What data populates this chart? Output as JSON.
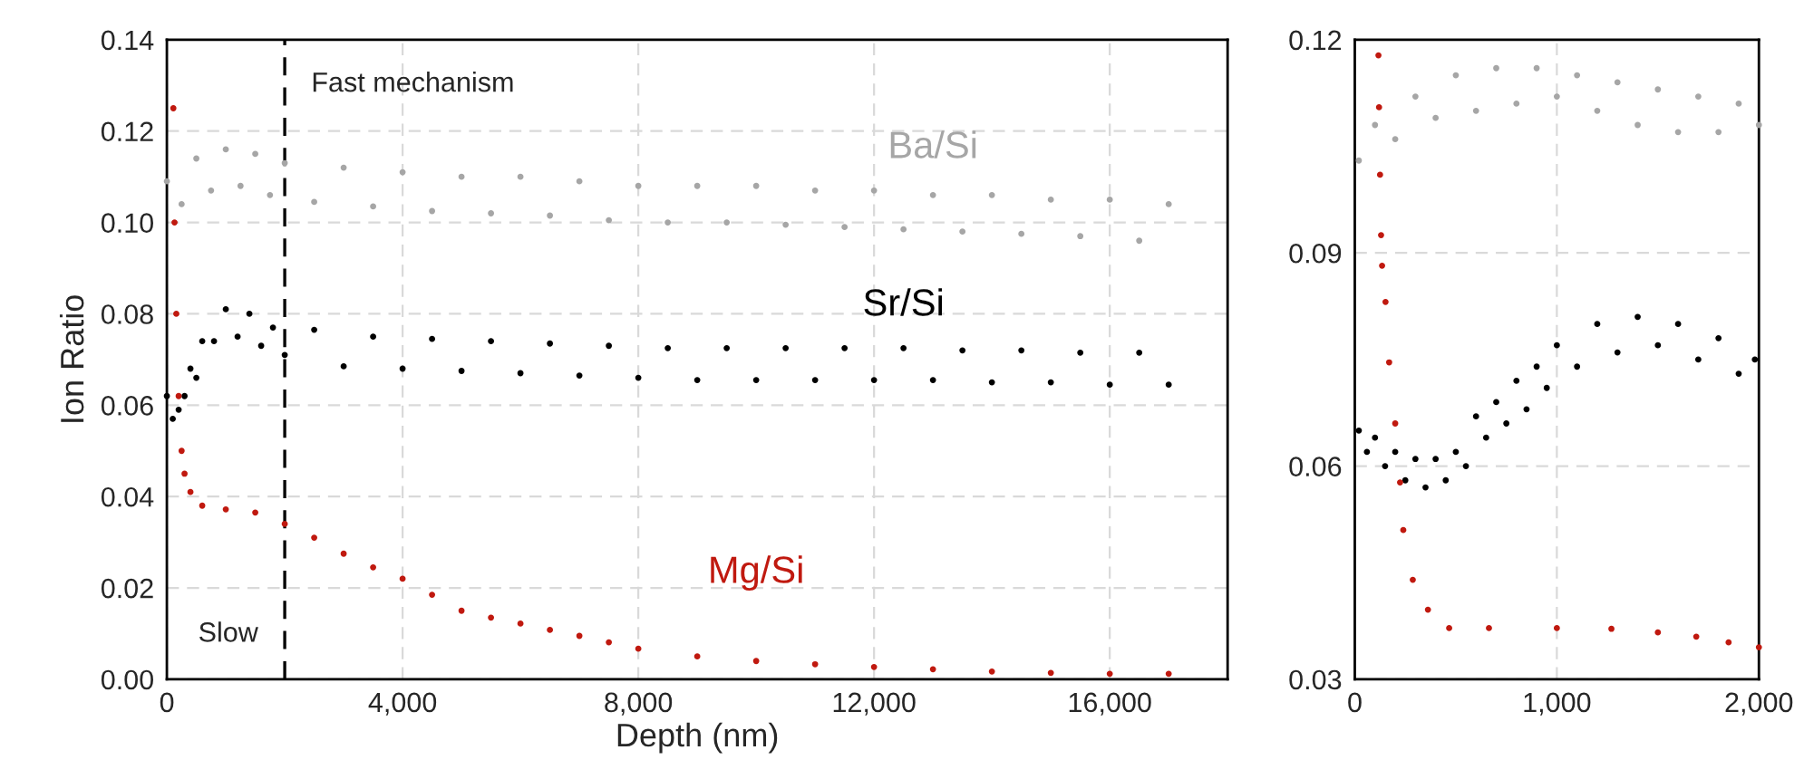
{
  "chart_data": [
    {
      "type": "scatter",
      "xlabel": "Depth (nm)",
      "ylabel": "Ion Ratio",
      "xlim": [
        0,
        18000
      ],
      "xticks": [
        0,
        {
          "value": 4000,
          "label": "4,000"
        },
        {
          "value": 8000,
          "label": "8,000"
        },
        {
          "value": 12000,
          "label": "12,000"
        },
        {
          "value": 16000,
          "label": "16,000"
        }
      ],
      "ylim": [
        0,
        0.14
      ],
      "yticks": [
        {
          "value": 0,
          "label": "0.00"
        },
        {
          "value": 0.02,
          "label": "0.02"
        },
        {
          "value": 0.04,
          "label": "0.04"
        },
        {
          "value": 0.06,
          "label": "0.06"
        },
        {
          "value": 0.08,
          "label": "0.08"
        },
        {
          "value": 0.1,
          "label": "0.10"
        },
        {
          "value": 0.12,
          "label": "0.12"
        },
        {
          "value": 0.14,
          "label": "0.14"
        }
      ],
      "grid": true,
      "marker": "circle",
      "ref_lines": [
        {
          "axis": "x",
          "value": 2000,
          "color": "#000000",
          "line_style": "dashed"
        }
      ],
      "annotations": [
        "Fast mechanism",
        "Slow"
      ],
      "series": [
        {
          "name": "Ba/Si",
          "color": "#a6a6a6",
          "x": [
            0,
            250,
            500,
            750,
            1000,
            1250,
            1500,
            1750,
            2000,
            2500,
            3000,
            3500,
            4000,
            4500,
            5000,
            5500,
            6000,
            6500,
            7000,
            7500,
            8000,
            8500,
            9000,
            9500,
            10000,
            10500,
            11000,
            11500,
            12000,
            12500,
            13000,
            13500,
            14000,
            14500,
            15000,
            15500,
            16000,
            16500,
            17000
          ],
          "values": [
            0.109,
            0.104,
            0.114,
            0.107,
            0.116,
            0.108,
            0.115,
            0.106,
            0.113,
            0.1045,
            0.112,
            0.1035,
            0.111,
            0.1025,
            0.11,
            0.102,
            0.11,
            0.1015,
            0.109,
            0.1005,
            0.108,
            0.1,
            0.108,
            0.1,
            0.108,
            0.0995,
            0.107,
            0.099,
            0.107,
            0.0985,
            0.106,
            0.098,
            0.106,
            0.0975,
            0.105,
            0.097,
            0.105,
            0.096,
            0.104
          ]
        },
        {
          "name": "Sr/Si",
          "color": "#000000",
          "x": [
            0,
            100,
            200,
            300,
            400,
            500,
            600,
            800,
            1000,
            1200,
            1400,
            1600,
            1800,
            2000,
            2500,
            3000,
            3500,
            4000,
            4500,
            5000,
            5500,
            6000,
            6500,
            7000,
            7500,
            8000,
            8500,
            9000,
            9500,
            10000,
            10500,
            11000,
            11500,
            12000,
            12500,
            13000,
            13500,
            14000,
            14500,
            15000,
            15500,
            16000,
            16500,
            17000
          ],
          "values": [
            0.062,
            0.057,
            0.059,
            0.062,
            0.068,
            0.066,
            0.074,
            0.074,
            0.081,
            0.075,
            0.08,
            0.073,
            0.077,
            0.071,
            0.0765,
            0.0685,
            0.075,
            0.068,
            0.0745,
            0.0675,
            0.074,
            0.067,
            0.0735,
            0.0665,
            0.073,
            0.066,
            0.0725,
            0.0655,
            0.0725,
            0.0655,
            0.0725,
            0.0655,
            0.0725,
            0.0655,
            0.0725,
            0.0655,
            0.072,
            0.065,
            0.072,
            0.065,
            0.0715,
            0.0645,
            0.0715,
            0.0645
          ]
        },
        {
          "name": "Mg/Si",
          "color": "#c0190f",
          "x": [
            110,
            130,
            160,
            200,
            250,
            300,
            400,
            600,
            1000,
            1500,
            2000,
            2500,
            3000,
            3500,
            4000,
            4500,
            5000,
            5500,
            6000,
            6500,
            7000,
            7500,
            8000,
            9000,
            10000,
            11000,
            12000,
            13000,
            14000,
            15000,
            16000,
            17000
          ],
          "values": [
            0.125,
            0.1,
            0.08,
            0.062,
            0.05,
            0.045,
            0.041,
            0.038,
            0.0372,
            0.0365,
            0.034,
            0.031,
            0.0275,
            0.0245,
            0.022,
            0.0185,
            0.015,
            0.0135,
            0.0122,
            0.0108,
            0.0095,
            0.0081,
            0.0067,
            0.005,
            0.004,
            0.0033,
            0.0027,
            0.0022,
            0.0017,
            0.0014,
            0.0012,
            0.0012
          ]
        }
      ]
    },
    {
      "type": "scatter",
      "xlim": [
        0,
        2000
      ],
      "xticks": [
        0,
        {
          "value": 1000,
          "label": "1,000"
        },
        {
          "value": 2000,
          "label": "2,000"
        }
      ],
      "ylim": [
        0.03,
        0.12
      ],
      "yticks": [
        0.03,
        0.06,
        0.09,
        0.12
      ],
      "grid": true,
      "marker": "circle",
      "series": [
        {
          "color": "#a6a6a6",
          "x": [
            20,
            100,
            200,
            300,
            400,
            500,
            600,
            700,
            800,
            900,
            1000,
            1100,
            1200,
            1300,
            1400,
            1500,
            1600,
            1700,
            1800,
            1900,
            2000
          ],
          "values": [
            0.103,
            0.108,
            0.106,
            0.112,
            0.109,
            0.115,
            0.11,
            0.116,
            0.111,
            0.116,
            0.112,
            0.115,
            0.11,
            0.114,
            0.108,
            0.113,
            0.107,
            0.112,
            0.107,
            0.111,
            0.108
          ]
        },
        {
          "color": "#000000",
          "x": [
            20,
            60,
            100,
            150,
            200,
            250,
            300,
            350,
            400,
            450,
            500,
            550,
            600,
            650,
            700,
            750,
            800,
            850,
            900,
            950,
            1000,
            1100,
            1200,
            1300,
            1400,
            1500,
            1600,
            1700,
            1800,
            1900,
            1980
          ],
          "values": [
            0.065,
            0.062,
            0.064,
            0.06,
            0.062,
            0.058,
            0.061,
            0.057,
            0.061,
            0.058,
            0.062,
            0.06,
            0.067,
            0.064,
            0.069,
            0.066,
            0.072,
            0.068,
            0.074,
            0.071,
            0.077,
            0.074,
            0.08,
            0.076,
            0.081,
            0.077,
            0.08,
            0.075,
            0.078,
            0.073,
            0.075
          ]
        },
        {
          "color": "#c0190f",
          "x": [
            117,
            120,
            125,
            130,
            135,
            152,
            170,
            200,
            224,
            240,
            287,
            362,
            467,
            664,
            1000,
            1270,
            1500,
            1690,
            1850,
            2000
          ],
          "values": [
            0.1178,
            0.1105,
            0.101,
            0.0925,
            0.0882,
            0.0831,
            0.0746,
            0.066,
            0.0577,
            0.051,
            0.044,
            0.0398,
            0.0372,
            0.0372,
            0.0372,
            0.0371,
            0.0366,
            0.036,
            0.0352,
            0.0345
          ]
        }
      ]
    }
  ]
}
